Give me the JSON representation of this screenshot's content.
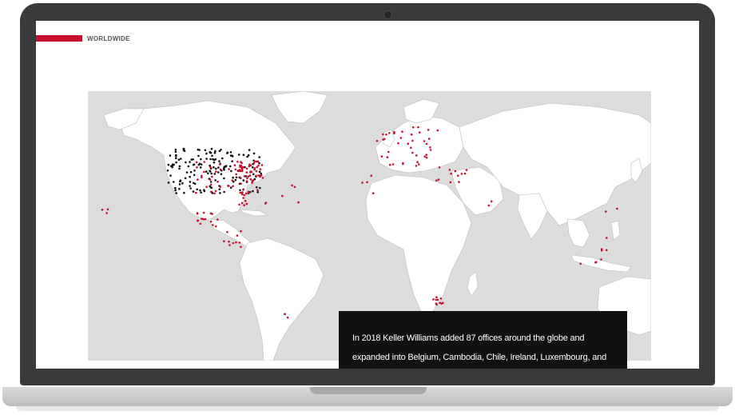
{
  "section": {
    "label": "WORLDWIDE"
  },
  "caption": {
    "text": "In 2018 Keller Williams added 87 offices around the globe and expanded into Belgium, Cambodia, Chile, Ireland, Luxembourg, and"
  },
  "colors": {
    "accent": "#c8102e",
    "us_office_dot": "#111111",
    "intl_office_dot": "#c8102e",
    "land": "#ffffff",
    "ocean": "#dcdcdc"
  }
}
